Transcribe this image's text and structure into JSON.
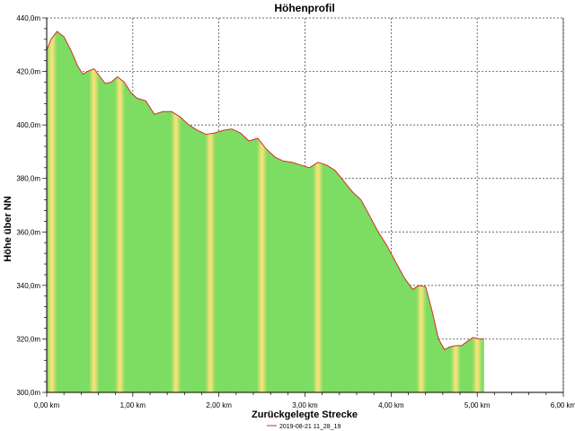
{
  "chart_data": {
    "type": "area",
    "title": "Höhenprofil",
    "xlabel": "Zurückgelegte Strecke",
    "ylabel": "Höhe über NN",
    "xlim": [
      0,
      6
    ],
    "ylim": [
      300,
      440
    ],
    "x_ticks": [
      "0,00 km",
      "1,00 km",
      "2,00 km",
      "3,00 km",
      "4,00 km",
      "5,00 km",
      "6,00 km"
    ],
    "y_ticks": [
      "300,0m",
      "320,0m",
      "340,0m",
      "360,0m",
      "380,0m",
      "400,0m",
      "420,0m",
      "440,0m"
    ],
    "grid": true,
    "legend": {
      "placement": "bottom",
      "entries": [
        "2019-08-21 11_28_19"
      ]
    },
    "colors": {
      "fill": "#7ddc62",
      "line": "#d0302a",
      "highlight": "#f2e27a"
    },
    "series": [
      {
        "name": "2019-08-21 11_28_19",
        "x": [
          0,
          0.05,
          0.12,
          0.2,
          0.28,
          0.36,
          0.42,
          0.47,
          0.55,
          0.62,
          0.68,
          0.75,
          0.82,
          0.9,
          0.98,
          1.05,
          1.15,
          1.25,
          1.35,
          1.45,
          1.55,
          1.65,
          1.75,
          1.85,
          1.95,
          2.05,
          2.15,
          2.25,
          2.35,
          2.45,
          2.55,
          2.65,
          2.75,
          2.85,
          2.95,
          3.05,
          3.15,
          3.25,
          3.35,
          3.45,
          3.55,
          3.65,
          3.75,
          3.85,
          3.95,
          4.05,
          4.15,
          4.25,
          4.32,
          4.4,
          4.48,
          4.55,
          4.62,
          4.68,
          4.75,
          4.82,
          4.88,
          4.95,
          5.02,
          5.08
        ],
        "y": [
          428,
          432,
          435,
          433,
          428,
          422,
          419,
          420,
          421,
          418,
          415.5,
          416,
          418,
          416,
          412,
          410,
          409,
          404,
          405,
          405,
          403,
          400,
          398,
          396.5,
          397,
          398,
          398.5,
          397,
          394,
          395,
          391,
          388,
          386.5,
          386,
          385,
          384,
          386,
          385,
          383,
          379,
          375,
          372,
          366,
          360,
          355,
          349,
          343,
          338.5,
          340,
          339.5,
          330,
          320,
          316,
          317,
          317.5,
          317.5,
          319,
          320.5,
          320,
          320
        ]
      }
    ],
    "highlight_bands_km": [
      0.06,
      0.55,
      0.85,
      1.5,
      1.9,
      2.5,
      3.15,
      4.35,
      4.75,
      5.0
    ]
  }
}
